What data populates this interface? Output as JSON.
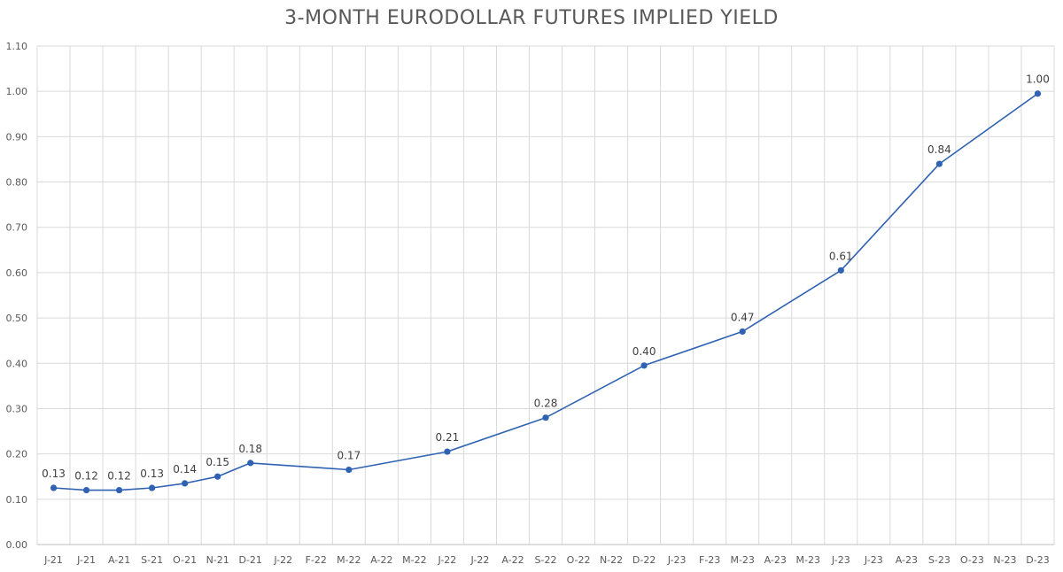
{
  "chart_data": {
    "type": "line",
    "title": "3-MONTH EURODOLLAR FUTURES IMPLIED YIELD",
    "xlabel": "",
    "ylabel": "",
    "ylim": [
      0,
      1.1
    ],
    "yticks": [
      "0.00",
      "0.10",
      "0.20",
      "0.30",
      "0.40",
      "0.50",
      "0.60",
      "0.70",
      "0.80",
      "0.90",
      "1.00",
      "1.10"
    ],
    "grid": true,
    "legend": "none",
    "categories": [
      "J-21",
      "J-21",
      "A-21",
      "S-21",
      "O-21",
      "N-21",
      "D-21",
      "J-22",
      "F-22",
      "M-22",
      "A-22",
      "M-22",
      "J-22",
      "J-22",
      "A-22",
      "S-22",
      "O-22",
      "N-22",
      "D-22",
      "J-23",
      "F-23",
      "M-23",
      "A-23",
      "M-23",
      "J-23",
      "J-23",
      "A-23",
      "S-23",
      "O-23",
      "N-23",
      "D-23"
    ],
    "series": [
      {
        "color": "#2F62B3",
        "points": [
          {
            "index": 0,
            "value": 0.125,
            "label": "0.13"
          },
          {
            "index": 1,
            "value": 0.12,
            "label": "0.12"
          },
          {
            "index": 2,
            "value": 0.12,
            "label": "0.12"
          },
          {
            "index": 3,
            "value": 0.125,
            "label": "0.13"
          },
          {
            "index": 4,
            "value": 0.135,
            "label": "0.14"
          },
          {
            "index": 5,
            "value": 0.15,
            "label": "0.15"
          },
          {
            "index": 6,
            "value": 0.18,
            "label": "0.18"
          },
          {
            "index": 9,
            "value": 0.165,
            "label": "0.17"
          },
          {
            "index": 12,
            "value": 0.205,
            "label": "0.21"
          },
          {
            "index": 15,
            "value": 0.28,
            "label": "0.28"
          },
          {
            "index": 18,
            "value": 0.395,
            "label": "0.40"
          },
          {
            "index": 21,
            "value": 0.47,
            "label": "0.47"
          },
          {
            "index": 24,
            "value": 0.605,
            "label": "0.61"
          },
          {
            "index": 27,
            "value": 0.84,
            "label": "0.84"
          },
          {
            "index": 30,
            "value": 0.995,
            "label": "1.00"
          }
        ]
      }
    ],
    "colors": {
      "line": "#2F62B3",
      "grid": "#D9D9D9",
      "text": "#595959"
    }
  }
}
